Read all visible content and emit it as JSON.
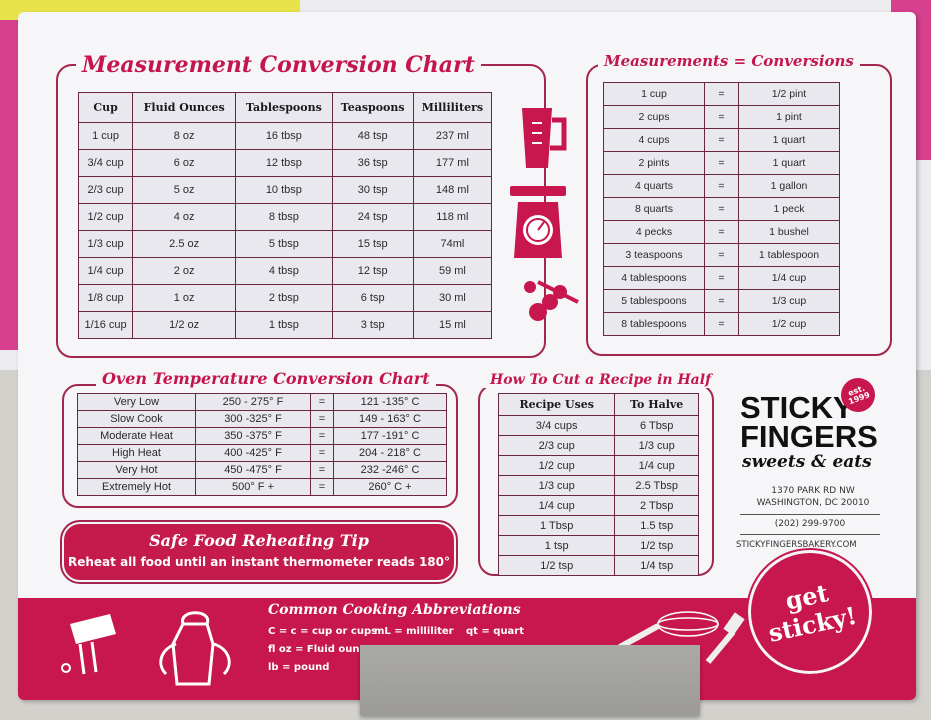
{
  "colors": {
    "brand": "#c8174f",
    "border": "#6a2740"
  },
  "measurement_chart": {
    "title": "Measurement Conversion Chart",
    "headers": [
      "Cup",
      "Fluid Ounces",
      "Tablespoons",
      "Teaspoons",
      "Milliliters"
    ],
    "rows": [
      [
        "1 cup",
        "8 oz",
        "16 tbsp",
        "48 tsp",
        "237 ml"
      ],
      [
        "3/4 cup",
        "6 oz",
        "12 tbsp",
        "36 tsp",
        "177 ml"
      ],
      [
        "2/3 cup",
        "5 oz",
        "10 tbsp",
        "30 tsp",
        "148 ml"
      ],
      [
        "1/2 cup",
        "4 oz",
        "8 tbsp",
        "24 tsp",
        "118 ml"
      ],
      [
        "1/3 cup",
        "2.5 oz",
        "5 tbsp",
        "15 tsp",
        "74ml"
      ],
      [
        "1/4 cup",
        "2 oz",
        "4 tbsp",
        "12 tsp",
        "59 ml"
      ],
      [
        "1/8 cup",
        "1 oz",
        "2 tbsp",
        "6 tsp",
        "30 ml"
      ],
      [
        "1/16 cup",
        "1/2 oz",
        "1 tbsp",
        "3 tsp",
        "15 ml"
      ]
    ]
  },
  "measurements_conversions": {
    "title": "Measurements = Conversions",
    "rows": [
      [
        "1 cup",
        "=",
        "1/2 pint"
      ],
      [
        "2 cups",
        "=",
        "1 pint"
      ],
      [
        "4 cups",
        "=",
        "1 quart"
      ],
      [
        "2 pints",
        "=",
        "1 quart"
      ],
      [
        "4 quarts",
        "=",
        "1 gallon"
      ],
      [
        "8 quarts",
        "=",
        "1 peck"
      ],
      [
        "4 pecks",
        "=",
        "1 bushel"
      ],
      [
        "3 teaspoons",
        "=",
        "1 tablespoon"
      ],
      [
        "4 tablespoons",
        "=",
        "1/4 cup"
      ],
      [
        "5 tablespoons",
        "=",
        "1/3 cup"
      ],
      [
        "8 tablespoons",
        "=",
        "1/2 cup"
      ]
    ]
  },
  "oven_chart": {
    "title": "Oven Temperature Conversion Chart",
    "rows": [
      [
        "Very Low",
        "250 - 275° F",
        "=",
        "121 -135° C"
      ],
      [
        "Slow Cook",
        "300 -325° F",
        "=",
        "149 - 163° C"
      ],
      [
        "Moderate Heat",
        "350 -375° F",
        "=",
        "177 -191° C"
      ],
      [
        "High Heat",
        "400 -425° F",
        "=",
        "204 - 218° C"
      ],
      [
        "Very Hot",
        "450 -475° F",
        "=",
        "232 -246° C"
      ],
      [
        "Extremely Hot",
        "500° F +",
        "=",
        "260° C +"
      ]
    ]
  },
  "tip": {
    "title": "Safe Food Reheating Tip",
    "text": "Reheat all food until an instant thermometer reads 180°"
  },
  "halve_chart": {
    "title": "How To Cut a Recipe in Half",
    "headers": [
      "Recipe Uses",
      "To Halve"
    ],
    "rows": [
      [
        "3/4 cups",
        "6 Tbsp"
      ],
      [
        "2/3 cup",
        "1/3 cup"
      ],
      [
        "1/2 cup",
        "1/4 cup"
      ],
      [
        "1/3 cup",
        "2.5 Tbsp"
      ],
      [
        "1/4 cup",
        "2 Tbsp"
      ],
      [
        "1 Tbsp",
        "1.5 tsp"
      ],
      [
        "1 tsp",
        "1/2 tsp"
      ],
      [
        "1/2 tsp",
        "1/4 tsp"
      ]
    ]
  },
  "brand": {
    "name_line1": "STICKY",
    "name_line2": "FINGERS",
    "tagline": "sweets & eats",
    "est": "est. 1999",
    "address_line1": "1370 PARK RD NW",
    "address_line2": "WASHINGTON, DC 20010",
    "phone": "(202) 299-9700",
    "website": "STICKYFINGERSBAKERY.COM",
    "badge": "get sticky!"
  },
  "abbreviations": {
    "title": "Common Cooking Abbreviations",
    "items": [
      "C = c = cup or cups",
      "mL = milliliter",
      "qt = quart",
      "fl oz = Fluid ounces",
      "lb = pound"
    ]
  },
  "icons": [
    "measuring-cup-icon",
    "kitchen-scale-icon",
    "measuring-spoons-icon",
    "hand-mixer-icon",
    "apron-icon",
    "whisk-icon",
    "spatula-icon"
  ]
}
